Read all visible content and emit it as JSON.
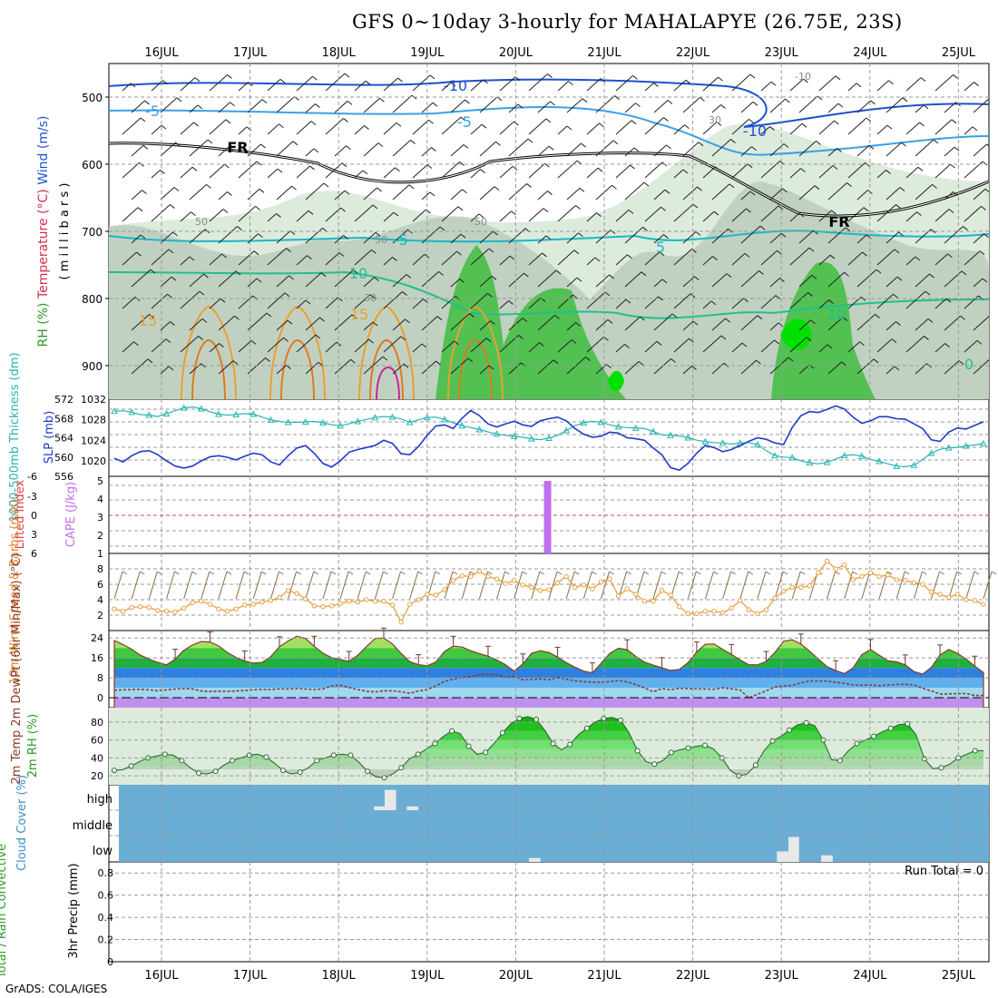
{
  "title": "GFS 0~10day 3-hourly for MAHALAPYE (26.75E, 23S)",
  "footer": "GrADS: COLA/IGES",
  "colors": {
    "rh_light": "#dcebdc",
    "rh_mid": "#b8c8b8",
    "rh_high": "#52c152",
    "rh_max": "#00e000",
    "temp_contour": "#e8a030",
    "cyan_contour": "#18b8c8",
    "blue_contour": "#1e50d0",
    "slp": "#1e3cc8",
    "thickness": "#28b4b4",
    "cape": "#c070f0",
    "lifted": "#e04040",
    "wind10m": "#e8a040",
    "cloud_bg": "#6aaed6",
    "precip_grid": "#aaaaaa"
  },
  "chart_data": [
    {
      "type": "area",
      "name": "pressure-level cross section",
      "ylabel_parts": [
        "RH (%)",
        "Temperature (°C)",
        "Wind (m/s)"
      ],
      "yunit": "( m i l l i b a r s )",
      "y_ticks": [
        "500",
        "600",
        "700",
        "800",
        "900"
      ],
      "days": [
        "16JUL",
        "17JUL",
        "18JUL",
        "19JUL",
        "20JUL",
        "21JUL",
        "22JUL",
        "23JUL",
        "24JUL",
        "25JUL"
      ],
      "contour_labels": [
        "-10",
        "-5",
        "-5",
        "-10",
        "FR",
        "FR",
        "-5",
        "5",
        "10",
        "10",
        "15",
        "15",
        "50",
        "50",
        "50",
        "30",
        "30",
        "-10",
        "0"
      ]
    },
    {
      "type": "line",
      "name": "slp-thickness",
      "ylabel_left": "1000-500mb Thickness (dm)",
      "ylabel_right": "SLP (mb)",
      "thickness_ticks": [
        "572",
        "568",
        "564",
        "560",
        "556"
      ],
      "slp_ticks": [
        "1032",
        "1028",
        "1024",
        "1020"
      ],
      "thickness_range": [
        556,
        572
      ],
      "slp_range": [
        1017,
        1032
      ],
      "slp": [
        1020.5,
        1019.8,
        1021,
        1021.8,
        1022,
        1021.2,
        1020,
        1019,
        1018.6,
        1019,
        1020,
        1020.8,
        1021,
        1020.7,
        1020.2,
        1020.9,
        1021.5,
        1021.2,
        1019.8,
        1019.2,
        1021,
        1022.5,
        1023,
        1021.5,
        1019.5,
        1018.8,
        1020,
        1021.7,
        1022.2,
        1022.6,
        1023,
        1024,
        1023.4,
        1021.4,
        1021.2,
        1022.8,
        1025,
        1026.8,
        1027,
        1026.3,
        1028.3,
        1029.8,
        1028.8,
        1027.2,
        1026.6,
        1027.2,
        1027.7,
        1027,
        1026.7,
        1027.8,
        1028.2,
        1028.5,
        1027.8,
        1026.3,
        1025.2,
        1024.6,
        1024.8,
        1025.6,
        1025.4,
        1024.5,
        1024.3,
        1024,
        1022.5,
        1021.2,
        1018.7,
        1018.2,
        1019.5,
        1021.5,
        1023,
        1022.6,
        1021.8,
        1022.2,
        1023,
        1023.8,
        1024.5,
        1024.2,
        1023.5,
        1023.2,
        1026.5,
        1028.8,
        1029.6,
        1029.4,
        1030,
        1030.7,
        1030.1,
        1028.5,
        1027.3,
        1027.8,
        1028.6,
        1028.6,
        1028.2,
        1028.1,
        1027.2,
        1026.3,
        1024.1,
        1023.8,
        1025.6,
        1026.4,
        1026.2,
        1026.9,
        1027.6
      ],
      "thickness": [
        569.5,
        569.6,
        569.3,
        568.8,
        568.7,
        568.4,
        569,
        569.6,
        570.2,
        570.4,
        570,
        569.4,
        568.9,
        568.7,
        568.8,
        569,
        568.9,
        568.3,
        567.7,
        567.4,
        567.2,
        567.2,
        567.3,
        567.4,
        567.1,
        566.7,
        566.5,
        566.9,
        567.4,
        567.8,
        568.2,
        568.4,
        568.3,
        567.9,
        567.2,
        567.7,
        568.2,
        568.3,
        567.8,
        567.1,
        566.5,
        566.1,
        565.7,
        565.2,
        564.8,
        564.5,
        564.3,
        564.1,
        563.8,
        563.6,
        563.9,
        564.5,
        565.5,
        566.5,
        567.1,
        567.4,
        567.2,
        566.7,
        566.3,
        566.1,
        566,
        565.9,
        565.3,
        564.6,
        564.5,
        564.4,
        564,
        563.5,
        563.2,
        563,
        562.9,
        562.7,
        562.9,
        563,
        562.6,
        561.3,
        560.3,
        560,
        559.9,
        559.2,
        558.8,
        558.6,
        558.9,
        559.6,
        560.3,
        560.5,
        560.2,
        559.5,
        559.1,
        558.6,
        558.1,
        558,
        558.3,
        559.5,
        560.8,
        561.6,
        561.9,
        562,
        562.3,
        562.5,
        562.8
      ]
    },
    {
      "type": "bar",
      "name": "cape-lifted-index",
      "ylabel_left": "Lifted Index",
      "ylabel_right": "CAPE (J/kg)",
      "li_ticks": [
        "-6",
        "-3",
        "0",
        "3",
        "6"
      ],
      "cape_ticks": [
        "5",
        "4",
        "3",
        "2",
        "1"
      ],
      "cape_range": [
        1,
        5.25
      ],
      "lifted_index_zero_line": 0,
      "cape_spikes": [
        {
          "day_fraction": 4.36,
          "value": 5
        }
      ]
    },
    {
      "type": "line",
      "name": "10m-wind",
      "ylabel": "10m Wind Speed & Barbs (m/s)",
      "y_ticks": [
        "8",
        "6",
        "4",
        "2"
      ],
      "y_range": [
        0,
        10
      ],
      "speed": [
        2.8,
        2.5,
        3,
        3.1,
        3,
        2.6,
        2.5,
        2.4,
        2.9,
        3.6,
        3.8,
        3.4,
        2.8,
        2.5,
        2.8,
        3.3,
        3.4,
        3.7,
        3.9,
        4.3,
        5.2,
        4.8,
        4.1,
        3.2,
        3.1,
        3.2,
        3.5,
        3.8,
        3.7,
        4,
        3.8,
        3.8,
        3.3,
        1.1,
        3.4,
        4,
        4.7,
        4.6,
        5.3,
        6.5,
        7.1,
        7,
        7.7,
        7,
        6.7,
        6.1,
        6.5,
        5.9,
        5.6,
        5.2,
        5.3,
        6.2,
        7,
        5.6,
        5.9,
        5.4,
        6.3,
        6.7,
        4.5,
        5.4,
        4.7,
        3.8,
        3.8,
        5.2,
        4.6,
        3.1,
        2.2,
        2.2,
        2.5,
        2.5,
        2.3,
        2.9,
        3.9,
        2.7,
        2.2,
        2.7,
        4.2,
        5.1,
        5.6,
        5.6,
        5.8,
        7.5,
        9,
        8,
        8.5,
        6.6,
        7,
        7.5,
        7,
        7.2,
        6.6,
        6.5,
        6.2,
        6,
        5,
        4.7,
        4.3,
        4.7,
        4,
        3.9,
        3.4
      ]
    },
    {
      "type": "area",
      "name": "2m-temperature",
      "ylabel": "2m Temp 2m DewPt (6hr Min/Max) (°C)",
      "y_ticks": [
        "24",
        "16",
        "8",
        "0"
      ],
      "y_range": [
        -4,
        27
      ],
      "temp": [
        23,
        21.4,
        19.5,
        17.1,
        15.5,
        14.2,
        13.2,
        15.5,
        19,
        21.2,
        22.6,
        22.4,
        20.8,
        18.2,
        16.2,
        14.8,
        13.9,
        14.2,
        16.5,
        20.5,
        22.8,
        24.7,
        23.8,
        20.7,
        17.9,
        16.1,
        15.4,
        14.6,
        17,
        20.5,
        23.8,
        24,
        21.6,
        17.8,
        14.5,
        13.3,
        12.8,
        14.4,
        18.6,
        20.7,
        20.4,
        18.9,
        17.7,
        16.7,
        15.2,
        13.3,
        10.7,
        13.6,
        17.8,
        18.9,
        18.2,
        16.3,
        14.1,
        12.3,
        10.7,
        10,
        13.8,
        17.8,
        19.9,
        19.3,
        16.6,
        14.3,
        13.1,
        12.1,
        11,
        11.4,
        14.1,
        18.4,
        21.5,
        21.6,
        19.4,
        17.4,
        15.2,
        13.3,
        13.2,
        14.6,
        18.2,
        22.7,
        23.3,
        21.6,
        18.7,
        15.6,
        12.5,
        10.9,
        9.7,
        12,
        17.3,
        19.4,
        17.1,
        14.9,
        14.4,
        13.2,
        10.5,
        9.5,
        12.2,
        17.2,
        19.4,
        17.8,
        15.5,
        12.7,
        10.1
      ],
      "dewpt": [
        3,
        3.2,
        3.3,
        3.4,
        3.2,
        2.8,
        3.2,
        3.5,
        3.7,
        3.5,
        2.7,
        2.5,
        2.6,
        2.6,
        2.7,
        2.9,
        3.2,
        3.4,
        3.3,
        3.6,
        3.5,
        3.7,
        3.5,
        3.3,
        3.5,
        4.8,
        5,
        4.1,
        3.3,
        2.6,
        2.3,
        2.8,
        2.8,
        2.4,
        1.8,
        2.7,
        3.3,
        4.7,
        6.6,
        7.5,
        8,
        8.6,
        9.2,
        9.4,
        9.2,
        8.1,
        8.5,
        7.2,
        7.3,
        7.6,
        7.2,
        8.1,
        7.4,
        6.8,
        6.5,
        6.3,
        6.2,
        6.5,
        6.9,
        6.4,
        5.3,
        3.9,
        2.4,
        3.7,
        3.2,
        3.8,
        3.7,
        3.6,
        3.5,
        3.4,
        4,
        3.6,
        3.1,
        -0.1,
        1.4,
        2.8,
        4.3,
        4.7,
        4.9,
        6,
        6.7,
        6.7,
        6.7,
        6.2,
        5.8,
        5.1,
        5,
        5.1,
        4.8,
        5.1,
        5.3,
        5.4,
        5.1,
        3.8,
        2.7,
        1.5,
        1.5,
        1.7,
        1.7,
        0.9,
        0.9
      ]
    },
    {
      "type": "area",
      "name": "2m-rh",
      "ylabel": "2m RH (%)",
      "y_ticks": [
        "80",
        "60",
        "40",
        "20"
      ],
      "y_range": [
        10,
        96
      ],
      "rh": [
        26,
        27,
        31,
        36,
        40,
        42,
        44,
        43,
        37,
        29,
        23,
        22,
        25,
        32,
        37,
        40,
        43,
        44,
        41,
        34,
        26,
        22,
        24,
        29,
        37,
        40,
        43,
        44,
        43,
        35,
        25,
        19,
        18,
        22,
        29,
        39,
        44,
        50,
        56,
        64,
        70,
        67,
        53,
        44,
        46,
        56,
        68,
        78,
        84,
        86,
        83,
        71,
        56,
        49,
        55,
        66,
        73,
        80,
        84,
        85,
        82,
        68,
        48,
        36,
        33,
        37,
        46,
        49,
        51,
        53,
        54,
        50,
        40,
        26,
        20,
        22,
        32,
        48,
        59,
        64,
        71,
        77,
        79,
        76,
        60,
        38,
        37,
        48,
        56,
        60,
        64,
        69,
        73,
        77,
        78,
        66,
        39,
        28,
        29,
        33,
        40,
        44,
        48,
        48
      ]
    },
    {
      "type": "bar",
      "name": "cloud-cover",
      "ylabel": "Cloud Cover (%)",
      "levels": [
        "high",
        "middle",
        "low"
      ],
      "cells": [
        {
          "level": "high",
          "day_start": 2.4,
          "day_end": 2.52,
          "fraction": 0.15
        },
        {
          "level": "high",
          "day_start": 2.52,
          "day_end": 2.65,
          "fraction": 0.8
        },
        {
          "level": "high",
          "day_start": 2.77,
          "day_end": 2.9,
          "fraction": 0.15
        },
        {
          "level": "low",
          "day_start": 4.15,
          "day_end": 4.28,
          "fraction": 0.15
        },
        {
          "level": "low",
          "day_start": 6.95,
          "day_end": 7.08,
          "fraction": 0.4
        },
        {
          "level": "low",
          "day_start": 7.08,
          "day_end": 7.2,
          "fraction": 0.95
        },
        {
          "level": "low",
          "day_start": 7.45,
          "day_end": 7.58,
          "fraction": 0.25
        }
      ]
    },
    {
      "type": "bar",
      "name": "precip",
      "ylabel_left": "Total / Rain Convective",
      "ylabel_right": "3hr Precip (mm)",
      "run_total": "Run Total = 0",
      "y_ticks": [
        "0.8",
        "0.6",
        "0.4",
        "0.2",
        "0"
      ],
      "y_range": [
        0,
        0.9
      ],
      "values": []
    }
  ]
}
